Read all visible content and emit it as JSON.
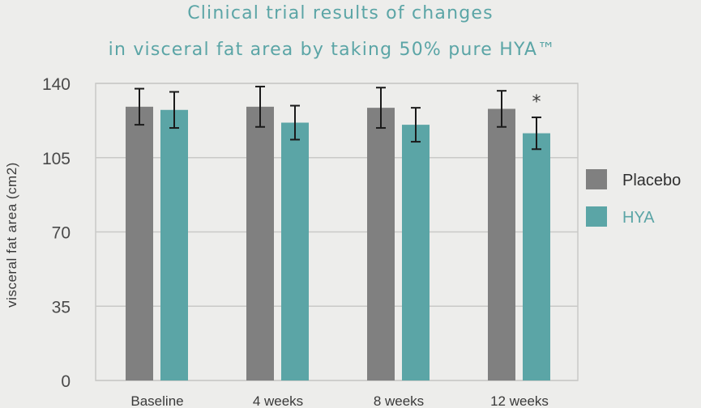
{
  "chart_data": {
    "type": "bar",
    "title": "Clinical trial results of changes",
    "subtitle": "in visceral fat area by taking 50% pure HYA™",
    "ylabel": "visceral fat area  (cm2)",
    "xlabel": "",
    "ylim": [
      0,
      140
    ],
    "yticks": [
      0,
      35,
      70,
      105,
      140
    ],
    "grid": true,
    "legend_position": "right",
    "categories": [
      "Baseline",
      "4 weeks",
      "8 weeks",
      "12 weeks"
    ],
    "series": [
      {
        "name": "Placebo",
        "color": "#808080",
        "values": [
          129,
          129,
          128.5,
          128
        ],
        "error": [
          8.5,
          9.5,
          9.5,
          8.5
        ]
      },
      {
        "name": "HYA",
        "color": "#5ba5a6",
        "values": [
          127.5,
          121.5,
          120.5,
          116.5
        ],
        "error": [
          8.5,
          8,
          8,
          7.5
        ]
      }
    ],
    "annotations": [
      {
        "text": "*",
        "category": "12 weeks",
        "series": "HYA"
      }
    ]
  }
}
